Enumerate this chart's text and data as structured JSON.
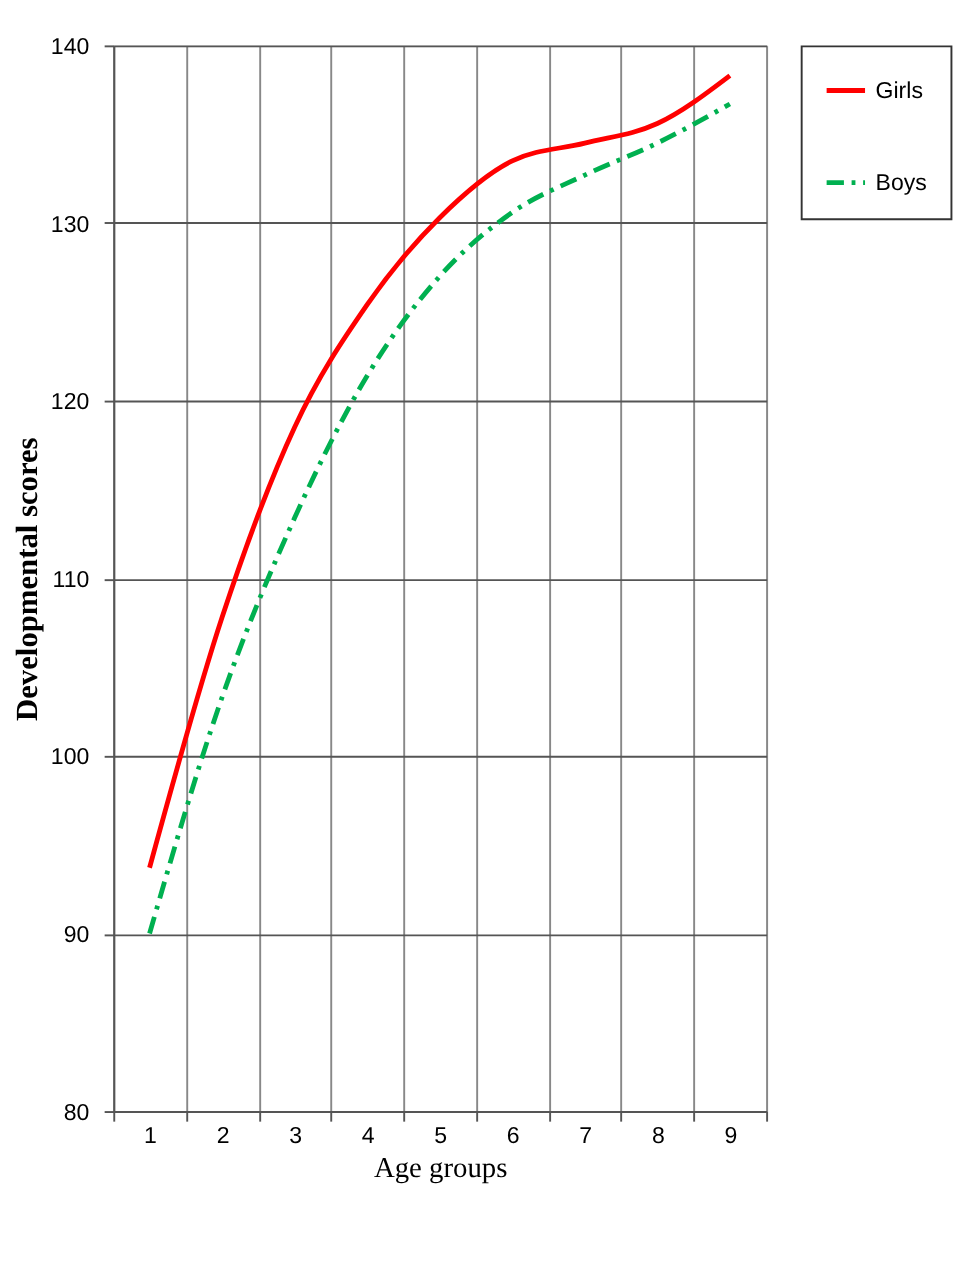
{
  "chart_data": {
    "type": "line",
    "xlabel": "Age groups",
    "ylabel": "Developmental scores",
    "categories": [
      "1",
      "2",
      "3",
      "4",
      "5",
      "6",
      "7",
      "8",
      "9"
    ],
    "series": [
      {
        "name": "Girls",
        "color": "#ff0000",
        "line_style": "solid",
        "values": [
          93.7,
          107.8,
          118.5,
          125.4,
          130.3,
          133.5,
          134.5,
          135.6,
          138.3
        ]
      },
      {
        "name": "Boys",
        "color": "#00b050",
        "line_style": "dashed",
        "values": [
          90.0,
          103.3,
          113.4,
          121.4,
          127.0,
          130.6,
          132.7,
          134.5,
          136.7
        ]
      }
    ],
    "ylim": [
      80,
      140
    ],
    "yticks": [
      80,
      90,
      100,
      110,
      120,
      130,
      140
    ],
    "grid": true,
    "legend": "right",
    "marker": "none"
  }
}
